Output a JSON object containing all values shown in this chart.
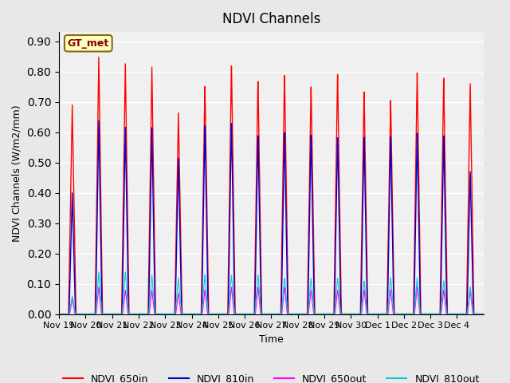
{
  "title": "NDVI Channels",
  "ylabel": "NDVI Channels (W/m2/mm)",
  "xlabel": "Time",
  "ylim": [
    0.0,
    0.93
  ],
  "yticks": [
    0.0,
    0.1,
    0.2,
    0.3,
    0.4,
    0.5,
    0.6,
    0.7,
    0.8,
    0.9
  ],
  "xtick_labels": [
    "Nov 19",
    "Nov 20",
    "Nov 21",
    "Nov 22",
    "Nov 23",
    "Nov 24",
    "Nov 25",
    "Nov 26",
    "Nov 27",
    "Nov 28",
    "Nov 29",
    "Nov 30",
    "Dec 1",
    "Dec 2",
    "Dec 3",
    "Dec 4"
  ],
  "legend_label": "GT_met",
  "colors": {
    "NDVI_650in": "#ff0000",
    "NDVI_810in": "#0000cc",
    "NDVI_650out": "#ff00ff",
    "NDVI_810out": "#00cccc"
  },
  "background_color": "#e8e8e8",
  "axes_bg": "#f0f0f0",
  "grid_color": "#ffffff",
  "spike_peaks_650in": [
    0.69,
    0.85,
    0.83,
    0.82,
    0.67,
    0.76,
    0.83,
    0.78,
    0.8,
    0.76,
    0.8,
    0.74,
    0.71,
    0.8,
    0.78,
    0.76
  ],
  "spike_peaks_810in": [
    0.4,
    0.64,
    0.62,
    0.62,
    0.52,
    0.63,
    0.64,
    0.6,
    0.61,
    0.6,
    0.59,
    0.59,
    0.59,
    0.6,
    0.59,
    0.47
  ],
  "spike_peaks_650out": [
    0.05,
    0.09,
    0.08,
    0.08,
    0.07,
    0.08,
    0.09,
    0.09,
    0.09,
    0.08,
    0.08,
    0.08,
    0.08,
    0.09,
    0.08,
    0.08
  ],
  "spike_peaks_810out": [
    0.06,
    0.14,
    0.14,
    0.13,
    0.12,
    0.13,
    0.13,
    0.13,
    0.12,
    0.12,
    0.12,
    0.11,
    0.12,
    0.12,
    0.11,
    0.09
  ]
}
